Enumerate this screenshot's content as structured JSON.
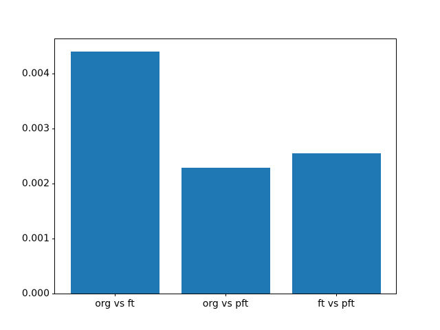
{
  "chart_data": {
    "type": "bar",
    "title": "",
    "xlabel": "",
    "ylabel": "",
    "categories": [
      "org vs ft",
      "org vs pft",
      "ft vs pft"
    ],
    "values": [
      0.0044,
      0.00228,
      0.00255
    ],
    "bar_color": "#1f77b4",
    "bar_width_frac": 0.8,
    "xlim": [
      -0.54,
      2.54
    ],
    "ylim": [
      0,
      0.00462
    ],
    "yticks": [
      {
        "value": 0.0,
        "label": "0.000"
      },
      {
        "value": 0.001,
        "label": "0.001"
      },
      {
        "value": 0.002,
        "label": "0.002"
      },
      {
        "value": 0.003,
        "label": "0.003"
      },
      {
        "value": 0.004,
        "label": "0.004"
      }
    ],
    "grid": false,
    "legend": "none",
    "axis_color": "#000000",
    "text_color": "#000000",
    "background_color": "#ffffff"
  }
}
